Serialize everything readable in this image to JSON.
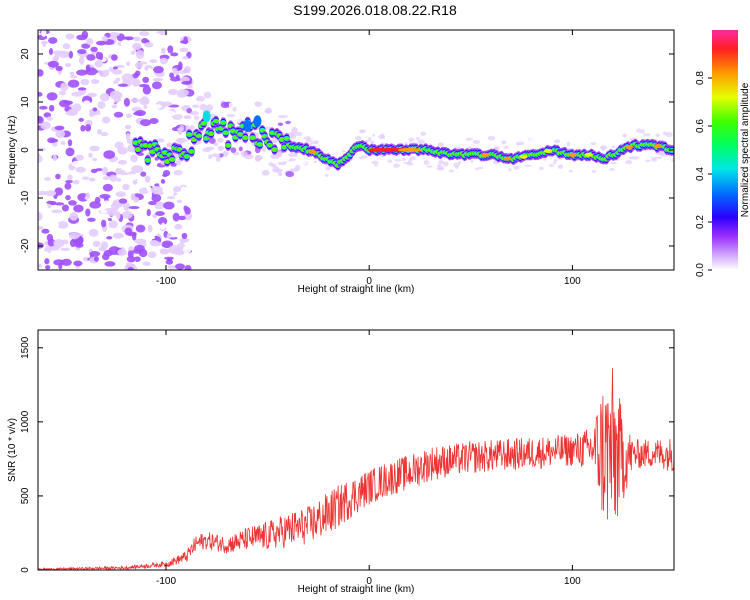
{
  "page": {
    "title": "S199.2026.018.08.22.R18"
  },
  "chart_data": [
    {
      "type": "heatmap",
      "name": "spectrogram",
      "xlabel": "Height of straight line (km)",
      "ylabel": "Frequency (Hz)",
      "xlim": [
        -163,
        150
      ],
      "ylim": [
        -25,
        25
      ],
      "xticks": [
        -100,
        0,
        100
      ],
      "yticks": [
        -20,
        -10,
        0,
        10,
        20
      ],
      "xtick_labels": [
        "-100",
        "0",
        "100"
      ],
      "ytick_labels": [
        "-20",
        "-10",
        "0",
        "10",
        "20"
      ],
      "colorbar": {
        "label": "Normalized spectral amplitude",
        "range": [
          0,
          1
        ],
        "ticks": [
          0.0,
          0.2,
          0.4,
          0.6,
          0.8
        ],
        "tick_labels": [
          "0.0",
          "0.2",
          "0.4",
          "0.6",
          "0.8"
        ]
      },
      "ridge": {
        "x": [
          -115,
          -100,
          -90,
          -80,
          -70,
          -60,
          -50,
          -40,
          -30,
          -20,
          -15,
          -10,
          -5,
          0,
          10,
          20,
          30,
          40,
          50,
          60,
          70,
          80,
          90,
          100,
          110,
          115,
          120,
          125,
          130,
          140,
          150
        ],
        "freq": [
          0,
          0,
          1,
          5,
          3,
          4,
          2,
          1,
          0,
          -2,
          -3,
          -1,
          1,
          0,
          0,
          0,
          0,
          -1,
          -1,
          -1,
          -2,
          -1,
          0,
          -1,
          -1,
          -2,
          -1,
          0,
          1,
          1,
          0
        ]
      }
    },
    {
      "type": "line",
      "name": "snr-plot",
      "xlabel": "Height of straight line (km)",
      "ylabel": "SNR (10 * v/v)",
      "xlim": [
        -163,
        150
      ],
      "ylim": [
        0,
        1620
      ],
      "xticks": [
        -100,
        0,
        100
      ],
      "yticks": [
        0,
        500,
        1000,
        1500
      ],
      "xtick_labels": [
        "-100",
        "0",
        "100"
      ],
      "ytick_labels": [
        "0",
        "500",
        "1000",
        "1500"
      ],
      "color": "#ee3333",
      "envelope": {
        "x": [
          -163,
          -120,
          -100,
          -90,
          -85,
          -80,
          -70,
          -60,
          -50,
          -40,
          -30,
          -20,
          -10,
          0,
          10,
          20,
          30,
          40,
          50,
          60,
          70,
          80,
          90,
          100,
          110,
          115,
          120,
          125,
          130,
          140,
          150
        ],
        "mean": [
          5,
          15,
          40,
          90,
          180,
          200,
          170,
          210,
          230,
          270,
          300,
          380,
          480,
          560,
          620,
          660,
          720,
          740,
          760,
          770,
          780,
          790,
          800,
          810,
          820,
          800,
          780,
          760,
          780,
          790,
          780
        ],
        "spread": [
          5,
          10,
          20,
          40,
          60,
          60,
          60,
          80,
          100,
          120,
          130,
          150,
          140,
          120,
          120,
          120,
          120,
          110,
          110,
          110,
          110,
          110,
          110,
          110,
          150,
          500,
          600,
          300,
          100,
          100,
          120
        ]
      }
    }
  ]
}
